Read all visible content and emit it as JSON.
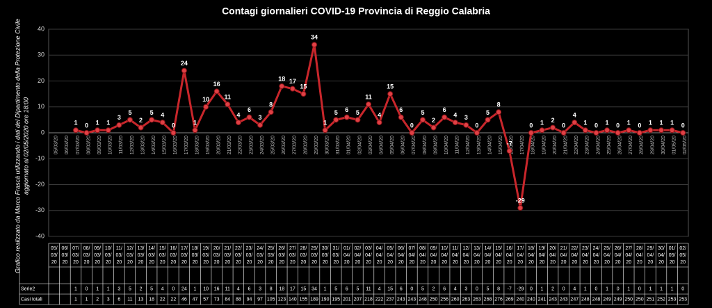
{
  "chart_data": {
    "type": "line",
    "title": "Contagi  giornalieri COVID-19 Provincia di Reggio Calabria",
    "notes": [
      "Grafico  realizzato da Marco Frascà  utilizzando i dati del Dipartimento  della Protezione Civile",
      "aggiornato al  02/05/2020 ore 18:00"
    ],
    "categories": [
      "05/03/20",
      "06/03/20",
      "07/03/20",
      "08/03/20",
      "09/03/20",
      "10/03/20",
      "11/03/20",
      "12/03/20",
      "13/03/20",
      "14/03/20",
      "15/03/20",
      "16/03/20",
      "17/03/20",
      "18/03/20",
      "19/03/20",
      "20/03/20",
      "21/03/20",
      "22/03/20",
      "23/03/20",
      "24/03/20",
      "25/03/20",
      "26/03/20",
      "27/03/20",
      "28/03/20",
      "29/03/20",
      "30/03/20",
      "31/03/20",
      "01/04/20",
      "02/04/20",
      "03/04/20",
      "04/04/20",
      "05/04/20",
      "06/04/20",
      "07/04/20",
      "08/04/20",
      "09/04/20",
      "10/04/20",
      "11/04/20",
      "12/04/20",
      "13/04/20",
      "14/04/20",
      "15/04/20",
      "16/04/20",
      "17/04/20",
      "18/04/20",
      "19/04/20",
      "20/04/20",
      "21/04/20",
      "22/04/20",
      "23/04/20",
      "24/04/20",
      "25/04/20",
      "26/04/20",
      "27/04/20",
      "28/04/20",
      "29/04/20",
      "30/04/20",
      "01/05/20",
      "02/05/20"
    ],
    "series": [
      {
        "name": "Serie2",
        "color": "#c8262b",
        "values": [
          null,
          null,
          1,
          0,
          1,
          1,
          3,
          5,
          2,
          5,
          4,
          0,
          24,
          1,
          10,
          16,
          11,
          4,
          6,
          3,
          8,
          18,
          17,
          15,
          34,
          1,
          5,
          6,
          5,
          11,
          4,
          15,
          6,
          0,
          5,
          2,
          6,
          4,
          3,
          0,
          5,
          8,
          -7,
          -29,
          0,
          1,
          2,
          0,
          4,
          1,
          0,
          1,
          0,
          1,
          0,
          1,
          1,
          1,
          0
        ]
      }
    ],
    "totals": {
      "name": "Casi totali",
      "values": [
        null,
        null,
        1,
        1,
        2,
        3,
        6,
        11,
        13,
        18,
        22,
        22,
        46,
        47,
        57,
        73,
        84,
        88,
        94,
        97,
        105,
        123,
        140,
        155,
        189,
        190,
        195,
        201,
        207,
        218,
        222,
        237,
        243,
        243,
        248,
        250,
        256,
        260,
        263,
        263,
        268,
        276,
        269,
        240,
        240,
        241,
        243,
        243,
        247,
        248,
        248,
        249,
        249,
        250,
        250,
        251,
        252,
        253,
        253
      ]
    },
    "ylim": [
      -40,
      40
    ],
    "yticks": [
      -40,
      -30,
      -20,
      -10,
      0,
      10,
      20,
      30,
      40
    ],
    "grid": true
  }
}
